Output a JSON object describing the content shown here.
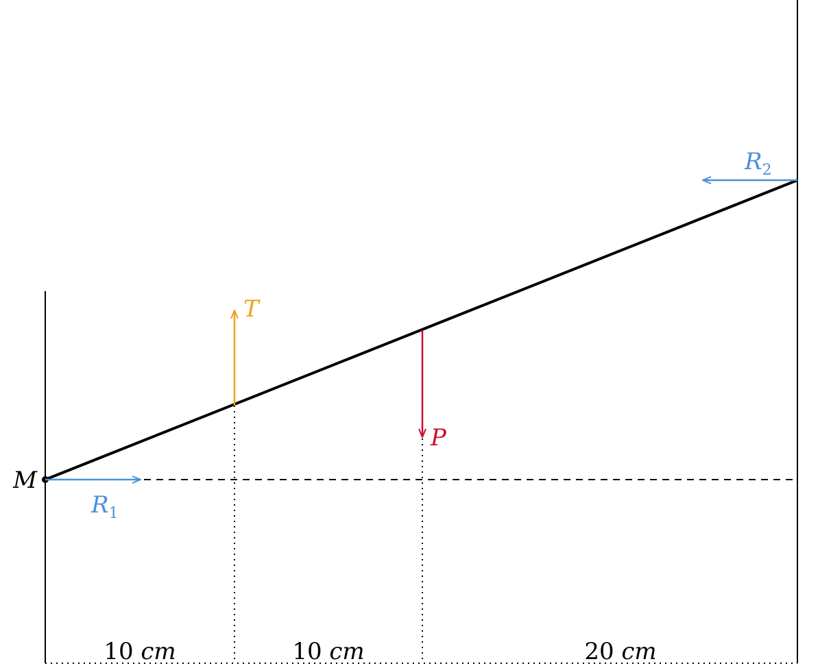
{
  "point": "M",
  "forces": [
    {
      "name": "R",
      "subscript": "1"
    },
    {
      "name": "R",
      "subscript": "2"
    },
    {
      "name": "T"
    },
    {
      "name": "P"
    }
  ],
  "dimensions": [
    {
      "number": "10",
      "unit": "cm"
    },
    {
      "number": "10",
      "unit": "cm"
    },
    {
      "number": "20",
      "unit": "cm"
    }
  ]
}
